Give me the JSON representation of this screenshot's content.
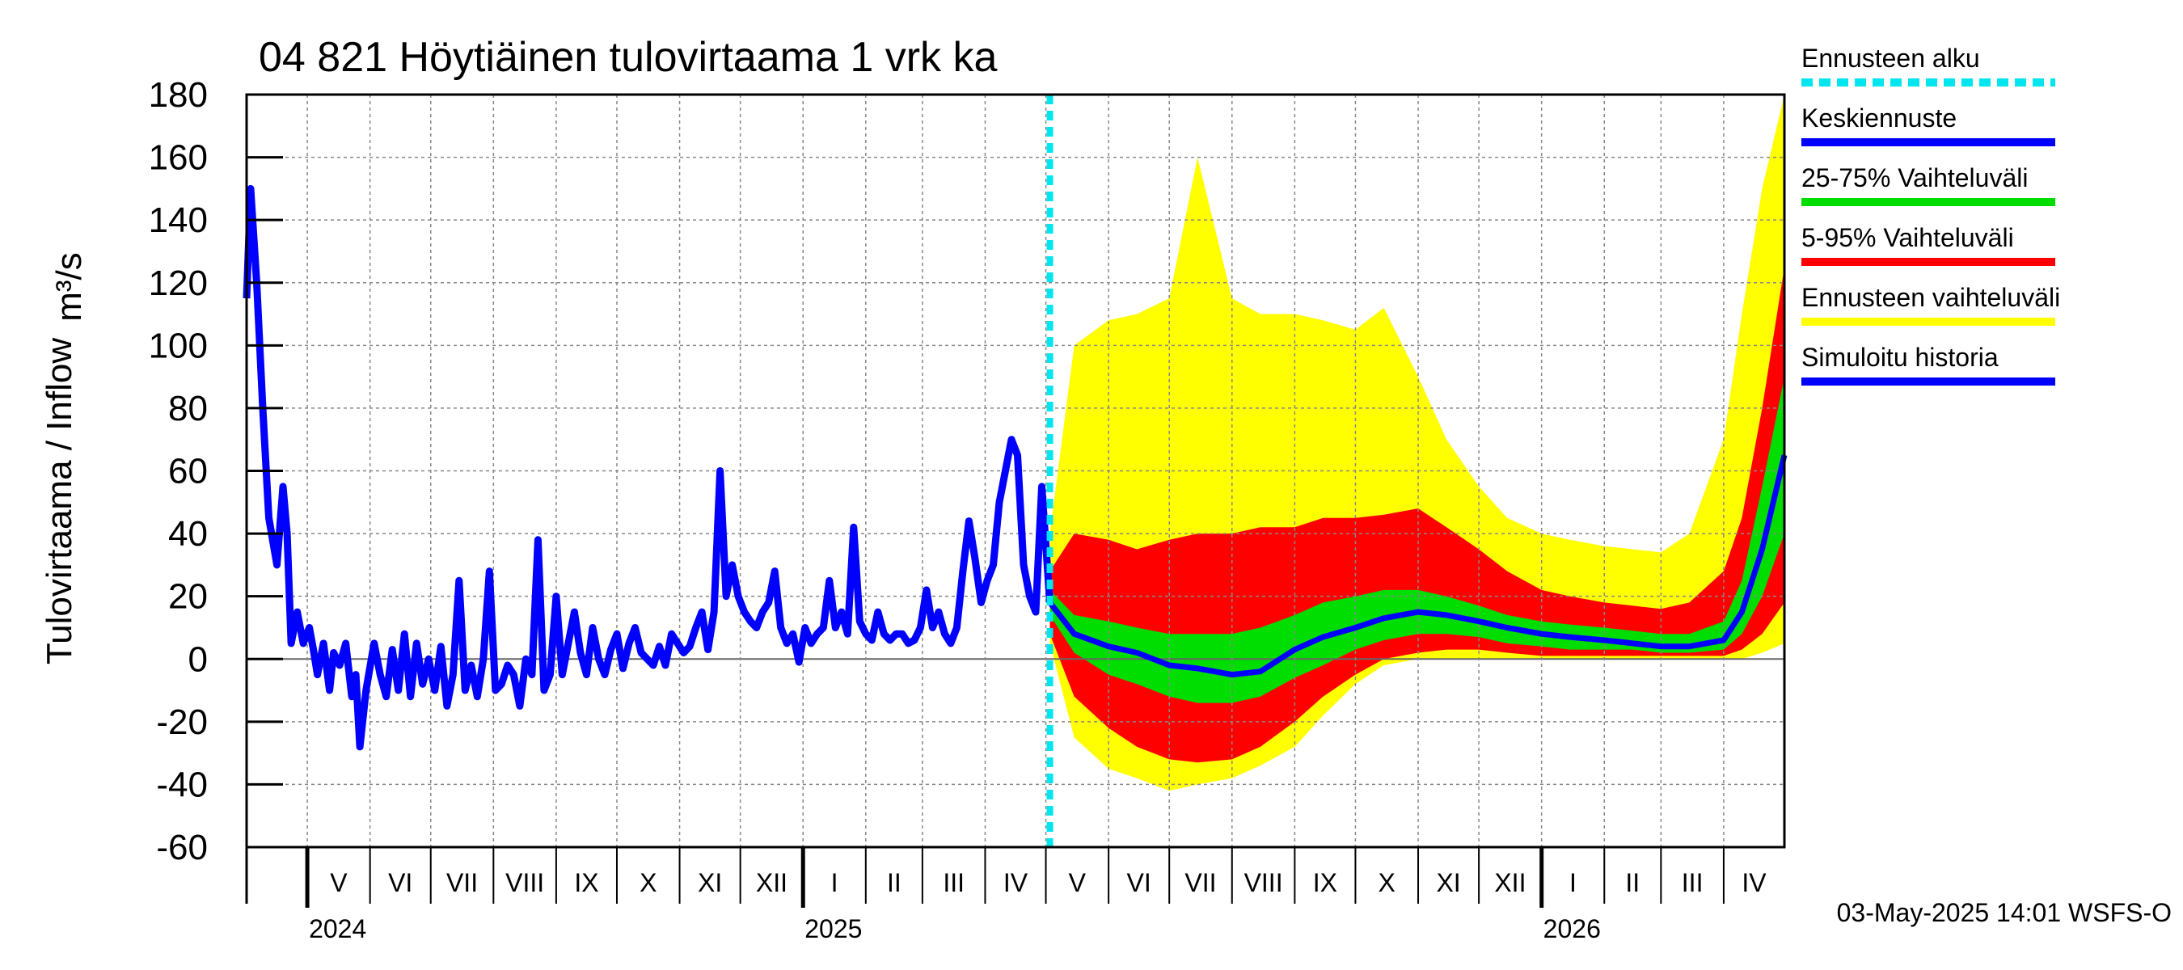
{
  "chart_data": {
    "type": "area",
    "title": "04 821 Höytiäinen tulovirtaama 1 vrk ka",
    "ylabel": "Tulovirtaama / Inflow",
    "yunit": "m³/s",
    "ylim": [
      -60,
      180
    ],
    "yticks": [
      -60,
      -40,
      -20,
      0,
      20,
      40,
      60,
      80,
      100,
      120,
      140,
      160,
      180
    ],
    "xrange": [
      "2024-04-01",
      "2026-05-01"
    ],
    "forecast_start": "2025-05-03",
    "grid": true,
    "months": [
      {
        "label": "V",
        "start": "2024-05-01",
        "end": "2024-06-01"
      },
      {
        "label": "VI",
        "start": "2024-06-01",
        "end": "2024-07-01"
      },
      {
        "label": "VII",
        "start": "2024-07-01",
        "end": "2024-08-01"
      },
      {
        "label": "VIII",
        "start": "2024-08-01",
        "end": "2024-09-01"
      },
      {
        "label": "IX",
        "start": "2024-09-01",
        "end": "2024-10-01"
      },
      {
        "label": "X",
        "start": "2024-10-01",
        "end": "2024-11-01"
      },
      {
        "label": "XI",
        "start": "2024-11-01",
        "end": "2024-12-01"
      },
      {
        "label": "XII",
        "start": "2024-12-01",
        "end": "2025-01-01"
      },
      {
        "label": "I",
        "start": "2025-01-01",
        "end": "2025-02-01"
      },
      {
        "label": "II",
        "start": "2025-02-01",
        "end": "2025-03-01"
      },
      {
        "label": "III",
        "start": "2025-03-01",
        "end": "2025-04-01"
      },
      {
        "label": "IV",
        "start": "2025-04-01",
        "end": "2025-05-01"
      },
      {
        "label": "V",
        "start": "2025-05-01",
        "end": "2025-06-01"
      },
      {
        "label": "VI",
        "start": "2025-06-01",
        "end": "2025-07-01"
      },
      {
        "label": "VII",
        "start": "2025-07-01",
        "end": "2025-08-01"
      },
      {
        "label": "VIII",
        "start": "2025-08-01",
        "end": "2025-09-01"
      },
      {
        "label": "IX",
        "start": "2025-09-01",
        "end": "2025-10-01"
      },
      {
        "label": "X",
        "start": "2025-10-01",
        "end": "2025-11-01"
      },
      {
        "label": "XI",
        "start": "2025-11-01",
        "end": "2025-12-01"
      },
      {
        "label": "XII",
        "start": "2025-12-01",
        "end": "2026-01-01"
      },
      {
        "label": "I",
        "start": "2026-01-01",
        "end": "2026-02-01"
      },
      {
        "label": "II",
        "start": "2026-02-01",
        "end": "2026-03-01"
      },
      {
        "label": "III",
        "start": "2026-03-01",
        "end": "2026-04-01"
      },
      {
        "label": "IV",
        "start": "2026-04-01",
        "end": "2026-05-01"
      }
    ],
    "years": [
      {
        "label": "2024",
        "start": "2024-05-01"
      },
      {
        "label": "2025",
        "start": "2025-01-01"
      },
      {
        "label": "2026",
        "start": "2026-01-01"
      }
    ],
    "legend": [
      {
        "label": "Ennusteen alku",
        "color": "#00e5ee",
        "style": "dashed"
      },
      {
        "label": "Keskiennuste",
        "color": "#0000ff",
        "style": "solid"
      },
      {
        "label": "25-75% Vaihteluväli",
        "color": "#00dd00",
        "style": "solid"
      },
      {
        "label": "5-95% Vaihteluväli",
        "color": "#ff0000",
        "style": "solid"
      },
      {
        "label": "Ennusteen vaihteluväli",
        "color": "#ffff00",
        "style": "solid"
      },
      {
        "label": "Simuloitu historia",
        "color": "#0000ff",
        "style": "solid"
      }
    ],
    "series": [
      {
        "name": "Simuloitu historia",
        "color": "#0000ff",
        "x": [
          "2024-04-01",
          "2024-04-03",
          "2024-04-06",
          "2024-04-09",
          "2024-04-12",
          "2024-04-16",
          "2024-04-19",
          "2024-04-21",
          "2024-04-23",
          "2024-04-26",
          "2024-04-29",
          "2024-05-02",
          "2024-05-04",
          "2024-05-06",
          "2024-05-09",
          "2024-05-12",
          "2024-05-14",
          "2024-05-17",
          "2024-05-20",
          "2024-05-23",
          "2024-05-25",
          "2024-05-27",
          "2024-05-30",
          "2024-06-03",
          "2024-06-06",
          "2024-06-09",
          "2024-06-12",
          "2024-06-15",
          "2024-06-18",
          "2024-06-21",
          "2024-06-24",
          "2024-06-27",
          "2024-06-30",
          "2024-07-03",
          "2024-07-06",
          "2024-07-09",
          "2024-07-12",
          "2024-07-15",
          "2024-07-18",
          "2024-07-21",
          "2024-07-24",
          "2024-07-27",
          "2024-07-30",
          "2024-08-02",
          "2024-08-05",
          "2024-08-08",
          "2024-08-11",
          "2024-08-14",
          "2024-08-17",
          "2024-08-20",
          "2024-08-23",
          "2024-08-26",
          "2024-08-29",
          "2024-09-01",
          "2024-09-04",
          "2024-09-07",
          "2024-09-10",
          "2024-09-13",
          "2024-09-16",
          "2024-09-19",
          "2024-09-22",
          "2024-09-25",
          "2024-09-28",
          "2024-10-01",
          "2024-10-04",
          "2024-10-07",
          "2024-10-10",
          "2024-10-13",
          "2024-10-16",
          "2024-10-19",
          "2024-10-22",
          "2024-10-25",
          "2024-10-28",
          "2024-10-31",
          "2024-11-03",
          "2024-11-06",
          "2024-11-09",
          "2024-11-12",
          "2024-11-15",
          "2024-11-18",
          "2024-11-21",
          "2024-11-24",
          "2024-11-27",
          "2024-11-30",
          "2024-12-03",
          "2024-12-06",
          "2024-12-09",
          "2024-12-12",
          "2024-12-15",
          "2024-12-18",
          "2024-12-21",
          "2024-12-24",
          "2024-12-27",
          "2024-12-30",
          "2025-01-02",
          "2025-01-05",
          "2025-01-08",
          "2025-01-11",
          "2025-01-14",
          "2025-01-17",
          "2025-01-20",
          "2025-01-23",
          "2025-01-26",
          "2025-01-29",
          "2025-02-01",
          "2025-02-04",
          "2025-02-07",
          "2025-02-10",
          "2025-02-13",
          "2025-02-16",
          "2025-02-19",
          "2025-02-22",
          "2025-02-25",
          "2025-02-28",
          "2025-03-03",
          "2025-03-06",
          "2025-03-09",
          "2025-03-12",
          "2025-03-15",
          "2025-03-18",
          "2025-03-21",
          "2025-03-24",
          "2025-03-27",
          "2025-03-30",
          "2025-04-02",
          "2025-04-05",
          "2025-04-08",
          "2025-04-11",
          "2025-04-14",
          "2025-04-17",
          "2025-04-20",
          "2025-04-23",
          "2025-04-26",
          "2025-04-29",
          "2025-05-03"
        ],
        "y": [
          115,
          150,
          120,
          80,
          45,
          30,
          55,
          40,
          5,
          15,
          5,
          10,
          3,
          -5,
          5,
          -10,
          2,
          -2,
          5,
          -12,
          -5,
          -28,
          -10,
          5,
          -5,
          -12,
          3,
          -10,
          8,
          -12,
          5,
          -8,
          0,
          -10,
          4,
          -15,
          -5,
          25,
          -10,
          -2,
          -12,
          0,
          28,
          -10,
          -8,
          -2,
          -5,
          -15,
          0,
          -5,
          38,
          -10,
          -5,
          20,
          -5,
          5,
          15,
          2,
          -5,
          10,
          0,
          -5,
          3,
          8,
          -3,
          5,
          10,
          2,
          0,
          -2,
          4,
          -2,
          8,
          5,
          2,
          4,
          10,
          15,
          3,
          15,
          60,
          20,
          30,
          20,
          15,
          12,
          10,
          15,
          18,
          28,
          10,
          5,
          8,
          -1,
          10,
          5,
          8,
          10,
          25,
          10,
          15,
          8,
          42,
          12,
          8,
          6,
          15,
          8,
          6,
          8,
          8,
          5,
          6,
          10,
          22,
          10,
          15,
          8,
          5,
          10,
          28,
          44,
          32,
          18,
          25,
          30,
          50,
          60,
          70,
          65,
          30,
          20,
          15,
          55,
          18
        ]
      },
      {
        "name": "Keskiennuste",
        "color": "#0000ff",
        "x": [
          "2025-05-03",
          "2025-05-15",
          "2025-06-01",
          "2025-06-15",
          "2025-07-01",
          "2025-07-15",
          "2025-08-01",
          "2025-08-15",
          "2025-09-01",
          "2025-09-15",
          "2025-10-01",
          "2025-10-15",
          "2025-11-01",
          "2025-11-15",
          "2025-12-01",
          "2025-12-15",
          "2026-01-01",
          "2026-01-15",
          "2026-02-01",
          "2026-02-15",
          "2026-03-01",
          "2026-03-15",
          "2026-04-01",
          "2026-04-10",
          "2026-04-20",
          "2026-05-01"
        ],
        "y": [
          18,
          8,
          4,
          2,
          -2,
          -3,
          -5,
          -4,
          3,
          7,
          10,
          13,
          15,
          14,
          12,
          10,
          8,
          7,
          6,
          5,
          4,
          4,
          6,
          15,
          35,
          65
        ]
      },
      {
        "name": "25-75% Vaihteluväli",
        "color": "#00dd00",
        "x": [
          "2025-05-03",
          "2025-05-15",
          "2025-06-01",
          "2025-06-15",
          "2025-07-01",
          "2025-07-15",
          "2025-08-01",
          "2025-08-15",
          "2025-09-01",
          "2025-09-15",
          "2025-10-01",
          "2025-10-15",
          "2025-11-01",
          "2025-11-15",
          "2025-12-01",
          "2025-12-15",
          "2026-01-01",
          "2026-01-15",
          "2026-02-01",
          "2026-02-15",
          "2026-03-01",
          "2026-03-15",
          "2026-04-01",
          "2026-04-10",
          "2026-04-20",
          "2026-05-01"
        ],
        "low": [
          14,
          2,
          -5,
          -8,
          -12,
          -14,
          -14,
          -12,
          -6,
          -2,
          3,
          6,
          8,
          8,
          7,
          5,
          4,
          3,
          3,
          3,
          2,
          2,
          3,
          8,
          20,
          40
        ],
        "high": [
          22,
          14,
          12,
          10,
          8,
          8,
          8,
          10,
          14,
          18,
          20,
          22,
          22,
          20,
          17,
          14,
          12,
          11,
          10,
          9,
          8,
          8,
          12,
          25,
          55,
          90
        ]
      },
      {
        "name": "5-95% Vaihteluväli",
        "color": "#ff0000",
        "x": [
          "2025-05-03",
          "2025-05-15",
          "2025-06-01",
          "2025-06-15",
          "2025-07-01",
          "2025-07-15",
          "2025-08-01",
          "2025-08-15",
          "2025-09-01",
          "2025-09-15",
          "2025-10-01",
          "2025-10-15",
          "2025-11-01",
          "2025-11-15",
          "2025-12-01",
          "2025-12-15",
          "2026-01-01",
          "2026-01-15",
          "2026-02-01",
          "2026-02-15",
          "2026-03-01",
          "2026-03-15",
          "2026-04-01",
          "2026-04-10",
          "2026-04-20",
          "2026-05-01"
        ],
        "low": [
          8,
          -12,
          -22,
          -28,
          -32,
          -33,
          -32,
          -28,
          -20,
          -12,
          -5,
          0,
          2,
          3,
          3,
          2,
          1,
          1,
          1,
          1,
          1,
          1,
          1,
          3,
          8,
          18
        ],
        "high": [
          28,
          40,
          38,
          35,
          38,
          40,
          40,
          42,
          42,
          45,
          45,
          46,
          48,
          42,
          35,
          28,
          22,
          20,
          18,
          17,
          16,
          18,
          28,
          45,
          80,
          125
        ]
      },
      {
        "name": "Ennusteen vaihteluväli",
        "color": "#ffff00",
        "x": [
          "2025-05-03",
          "2025-05-15",
          "2025-06-01",
          "2025-06-15",
          "2025-07-01",
          "2025-07-15",
          "2025-08-01",
          "2025-08-15",
          "2025-09-01",
          "2025-09-15",
          "2025-10-01",
          "2025-10-15",
          "2025-11-01",
          "2025-11-15",
          "2025-12-01",
          "2025-12-15",
          "2026-01-01",
          "2026-01-15",
          "2026-02-01",
          "2026-02-15",
          "2026-03-01",
          "2026-03-15",
          "2026-04-01",
          "2026-04-10",
          "2026-04-20",
          "2026-05-01"
        ],
        "low": [
          5,
          -25,
          -35,
          -38,
          -42,
          -40,
          -38,
          -34,
          -28,
          -18,
          -8,
          -2,
          0,
          0,
          0,
          0,
          0,
          0,
          0,
          0,
          0,
          0,
          0,
          0,
          2,
          5
        ],
        "high": [
          40,
          100,
          108,
          110,
          115,
          160,
          115,
          110,
          110,
          108,
          105,
          112,
          90,
          70,
          55,
          45,
          40,
          38,
          36,
          35,
          34,
          40,
          70,
          110,
          150,
          180
        ]
      }
    ]
  },
  "footer": {
    "stamp": "03-May-2025 14:01 WSFS-O"
  }
}
